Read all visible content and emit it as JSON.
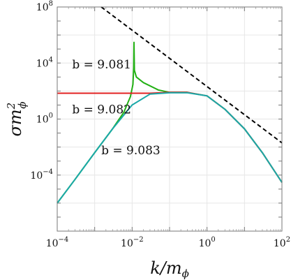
{
  "chart_data": {
    "type": "line",
    "x_scale": "log",
    "y_scale": "log",
    "xlim": [
      0.0001,
      100
    ],
    "ylim": [
      1e-08,
      100000000
    ],
    "grid": true,
    "xlabel": {
      "base": "k/m",
      "sub": "ϕ"
    },
    "ylabel": {
      "base": "σm",
      "sup": "2",
      "sub": "ϕ"
    },
    "x_ticks": [
      {
        "value": 0.0001,
        "base": "10",
        "exp": "−4"
      },
      {
        "value": 0.01,
        "base": "10",
        "exp": "−2"
      },
      {
        "value": 1,
        "base": "10",
        "exp": "0"
      },
      {
        "value": 100,
        "base": "10",
        "exp": "2"
      }
    ],
    "y_ticks": [
      {
        "value": 0.0001,
        "base": "10",
        "exp": "−4"
      },
      {
        "value": 1,
        "base": "10",
        "exp": "0"
      },
      {
        "value": 10000,
        "base": "10",
        "exp": "4"
      },
      {
        "value": 100000000,
        "base": "10",
        "exp": "8"
      }
    ],
    "series": [
      {
        "label": "b = 9.081",
        "color": "#22b014",
        "x": [
          0.0001,
          0.0003,
          0.001,
          0.003,
          0.006,
          0.009,
          0.0105,
          0.011,
          0.0112,
          0.0115,
          0.013,
          0.02,
          0.05,
          0.1,
          0.3,
          1,
          3,
          10,
          30,
          100
        ],
        "y": [
          1e-06,
          5e-05,
          0.004,
          0.2,
          3,
          40,
          300,
          5000,
          300000,
          3000,
          1000,
          400,
          120,
          80,
          80,
          45,
          5,
          0.2,
          0.004,
          3e-05
        ]
      },
      {
        "label": "b = 9.082",
        "color": "#e02020",
        "x": [
          0.0001,
          0.001,
          0.005,
          0.01,
          0.03,
          0.1,
          0.3,
          1,
          3,
          10,
          30,
          100
        ],
        "y": [
          70,
          70,
          70,
          70,
          70,
          80,
          80,
          45,
          5,
          0.2,
          0.004,
          3e-05
        ]
      },
      {
        "label": "b = 9.083",
        "color": "#1aa8a8",
        "x": [
          0.0001,
          0.0003,
          0.001,
          0.003,
          0.01,
          0.03,
          0.1,
          0.3,
          1,
          3,
          10,
          30,
          100
        ],
        "y": [
          1e-06,
          5e-05,
          0.004,
          0.2,
          10,
          60,
          75,
          75,
          45,
          5,
          0.2,
          0.004,
          3e-05
        ]
      },
      {
        "label": "",
        "color": "#000000",
        "dashed": true,
        "x": [
          0.0015,
          100
        ],
        "y": [
          100000000,
          0.02
        ]
      }
    ],
    "annotations": [
      {
        "text": "b = 9.081",
        "x": 0.00025,
        "y": 4000
      },
      {
        "text": "b = 9.082",
        "x": 0.00025,
        "y": 2.5
      },
      {
        "text": "b = 9.083",
        "x": 0.0015,
        "y": 0.003
      }
    ]
  }
}
